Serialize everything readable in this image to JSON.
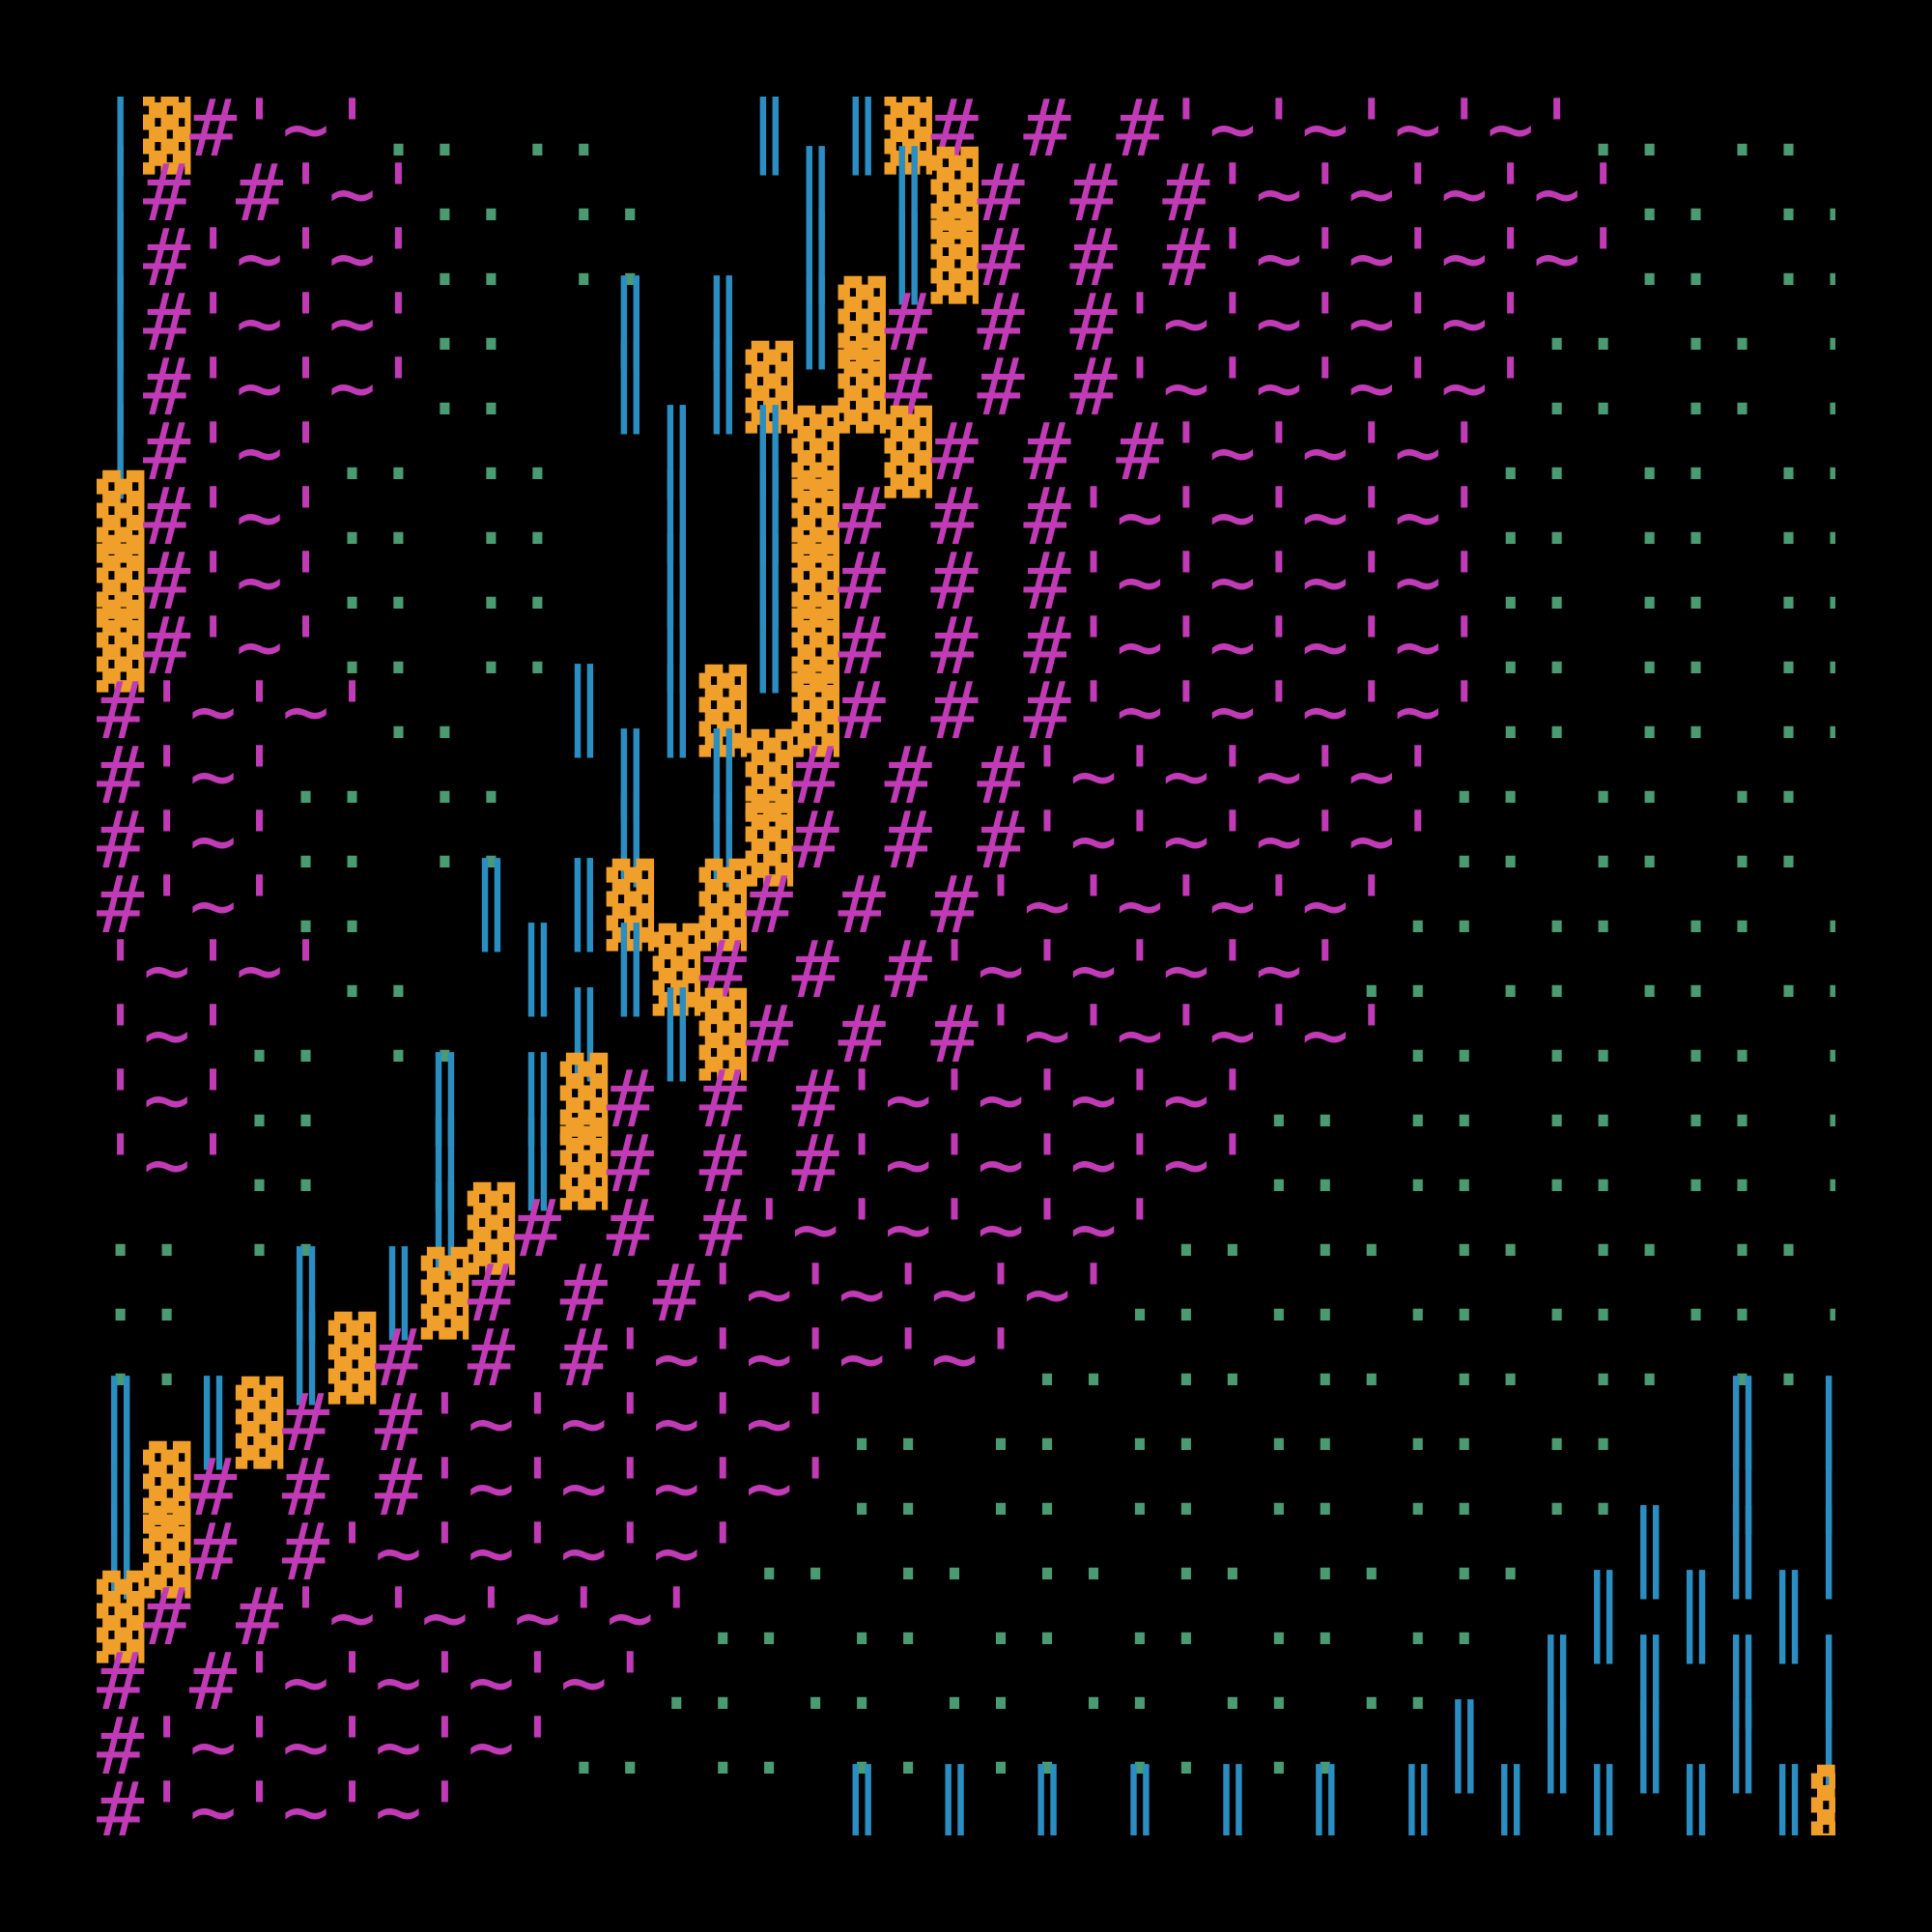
{
  "colors": {
    "background": "#000000",
    "hash": "#c23bb6",
    "wave": "#c23bb6",
    "dots": "#4a9a72",
    "bars": "#2a8ec3",
    "blocks": "#f0a02a",
    "stipple": "#e07aa8"
  },
  "rows": [
    [
      [
        "│",
        "bars"
      ],
      [
        "▓",
        "blocks"
      ],
      [
        "#",
        "hash"
      ],
      [
        "'~'",
        "wave"
      ],
      [
        ".. ..",
        "dots"
      ],
      [
        "   ",
        ""
      ],
      [
        "║ ║",
        "bars"
      ],
      [
        "▓",
        "blocks"
      ],
      [
        "# # #",
        "hash"
      ],
      [
        "'~'~'~'~'",
        "wave"
      ],
      [
        ".. .. .. .. ..",
        "dots"
      ],
      [
        "  ",
        ""
      ],
      [
        "║ ║ ║ ║ ║ ║",
        "bars"
      ],
      [
        "▓ ▓ ▓ ▓ ▓ ▓ ▓",
        "blocks"
      ],
      [
        "░ ░",
        "stipple"
      ]
    ],
    [
      [
        "│",
        "bars"
      ],
      [
        "# #",
        "hash"
      ],
      [
        "'~'",
        "wave"
      ],
      [
        ".. ..",
        "dots"
      ],
      [
        "   ",
        ""
      ],
      [
        "║ ║",
        "bars"
      ],
      [
        "▓",
        "blocks"
      ],
      [
        "# # #",
        "hash"
      ],
      [
        "'~'~'~'~'",
        "wave"
      ],
      [
        ".. .. .. .. ..",
        "dots"
      ],
      [
        "  ",
        ""
      ],
      [
        "║ ║ ║ ║ ║ ║",
        "bars"
      ],
      [
        "▓ ▓ ▓ ▓ ▓ ▓ ▓",
        "blocks"
      ],
      [
        "░ ░",
        "stipple"
      ]
    ],
    [
      [
        "│",
        "bars"
      ],
      [
        "#",
        "hash"
      ],
      [
        "'~'~'",
        "wave"
      ],
      [
        ".. ..",
        "dots"
      ],
      [
        "   ",
        ""
      ],
      [
        "║ ║",
        "bars"
      ],
      [
        "▓",
        "blocks"
      ],
      [
        "# # #",
        "hash"
      ],
      [
        "'~'~'~'~'",
        "wave"
      ],
      [
        ".. .. .. .. ..",
        "dots"
      ],
      [
        "  ",
        ""
      ],
      [
        "║ ║ ║ ║ ║ ║",
        "bars"
      ],
      [
        "▓ ▓ ▓ ▓ ▓ ▓ ▓",
        "blocks"
      ],
      [
        "░ ░",
        "stipple"
      ]
    ],
    [
      [
        "│",
        "bars"
      ],
      [
        "#",
        "hash"
      ],
      [
        "'~'~'",
        "wave"
      ],
      [
        "..",
        "dots"
      ],
      [
        "  ",
        ""
      ],
      [
        "║ ║ ║",
        "bars"
      ],
      [
        "▓",
        "blocks"
      ],
      [
        "# # #",
        "hash"
      ],
      [
        "'~'~'~'~'",
        "wave"
      ],
      [
        ".. .. .. ..",
        "dots"
      ],
      [
        "  ",
        ""
      ],
      [
        "║ ║ ║ ║ ║ ║ ║",
        "bars"
      ],
      [
        "▓ ▓ ▓ ▓ ▓ ▓ ▓",
        "blocks"
      ],
      [
        "░ ░",
        "stipple"
      ]
    ],
    [
      [
        "│",
        "bars"
      ],
      [
        "#",
        "hash"
      ],
      [
        "'~'~'",
        "wave"
      ],
      [
        "..",
        "dots"
      ],
      [
        "  ",
        ""
      ],
      [
        "║ ║",
        "bars"
      ],
      [
        "▓ ▓",
        "blocks"
      ],
      [
        "# # #",
        "hash"
      ],
      [
        "'~'~'~'~'",
        "wave"
      ],
      [
        ".. .. .. ..",
        "dots"
      ],
      [
        "  ",
        ""
      ],
      [
        "║ ║ ║ ║ ║ ║ ║",
        "bars"
      ],
      [
        "▓ ▓ ▓ ▓ ▓ ▓ ▓",
        "blocks"
      ],
      [
        "░ ░",
        "stipple"
      ]
    ],
    [
      [
        "│",
        "bars"
      ],
      [
        "#",
        "hash"
      ],
      [
        "'~'",
        "wave"
      ],
      [
        ".. ..",
        "dots"
      ],
      [
        "  ",
        ""
      ],
      [
        "║ ║",
        "bars"
      ],
      [
        "▓ ▓",
        "blocks"
      ],
      [
        "# # #",
        "hash"
      ],
      [
        "'~'~'~'",
        "wave"
      ],
      [
        ".. .. .. .. ..",
        "dots"
      ],
      [
        "  ",
        ""
      ],
      [
        "║ ║ ║ ║ ║ ║",
        "bars"
      ],
      [
        "▓ ▓ ▓ ▓ ▓ ▓ ▓ ▓",
        "blocks"
      ],
      [
        "░ ░",
        "stipple"
      ]
    ],
    [
      [
        "▓",
        "blocks"
      ],
      [
        "#",
        "hash"
      ],
      [
        "'~'",
        "wave"
      ],
      [
        ".. ..",
        "dots"
      ],
      [
        "  ",
        ""
      ],
      [
        "║ ║",
        "bars"
      ],
      [
        "▓",
        "blocks"
      ],
      [
        "# # #",
        "hash"
      ],
      [
        "'~'~'~'~'",
        "wave"
      ],
      [
        ".. .. .. .. ..",
        "dots"
      ],
      [
        "  ",
        ""
      ],
      [
        "║ ║ ║ ║ ║ ║",
        "bars"
      ],
      [
        "▓ ▓ ▓ ▓ ▓ ▓ ▓ ▓",
        "blocks"
      ],
      [
        "░ ░",
        "stipple"
      ]
    ],
    [
      [
        "▓",
        "blocks"
      ],
      [
        "#",
        "hash"
      ],
      [
        "'~'",
        "wave"
      ],
      [
        ".. ..",
        "dots"
      ],
      [
        "  ",
        ""
      ],
      [
        "║ ║",
        "bars"
      ],
      [
        "▓",
        "blocks"
      ],
      [
        "# # #",
        "hash"
      ],
      [
        "'~'~'~'~'",
        "wave"
      ],
      [
        ".. .. .. .. ..",
        "dots"
      ],
      [
        "  ",
        ""
      ],
      [
        "║ ║ ║ ║ ║ ║",
        "bars"
      ],
      [
        "▓ ▓ ▓ ▓ ▓ ▓ ▓ ▓",
        "blocks"
      ],
      [
        "░ ░",
        "stipple"
      ]
    ],
    [
      [
        "▓",
        "blocks"
      ],
      [
        "#",
        "hash"
      ],
      [
        "'~'",
        "wave"
      ],
      [
        ".. ..",
        "dots"
      ],
      [
        "  ",
        ""
      ],
      [
        "║ ║",
        "bars"
      ],
      [
        "▓",
        "blocks"
      ],
      [
        "# # #",
        "hash"
      ],
      [
        "'~'~'~'~'",
        "wave"
      ],
      [
        ".. .. .. .. ..",
        "dots"
      ],
      [
        "  ",
        ""
      ],
      [
        "║ ║ ║ ║ ║ ║",
        "bars"
      ],
      [
        "▓ ▓ ▓ ▓ ▓ ▓ ▓ ▓ ▓",
        "blocks"
      ],
      [
        "░",
        "stipple"
      ]
    ],
    [
      [
        "#",
        "hash"
      ],
      [
        "'~'~'",
        "wave"
      ],
      [
        "..",
        "dots"
      ],
      [
        "  ",
        ""
      ],
      [
        "║ ║",
        "bars"
      ],
      [
        "▓ ▓",
        "blocks"
      ],
      [
        "# # #",
        "hash"
      ],
      [
        "'~'~'~'~'",
        "wave"
      ],
      [
        ".. .. .. .. ..",
        "dots"
      ],
      [
        "  ",
        ""
      ],
      [
        "║ ║ ║ ║ ║ ║",
        "bars"
      ],
      [
        "▓ ▓ ▓ ▓ ▓ ▓ ▓ ▓ ▓",
        "blocks"
      ],
      [
        "░",
        "stipple"
      ]
    ],
    [
      [
        "#",
        "hash"
      ],
      [
        "'~'",
        "wave"
      ],
      [
        ".. ..",
        "dots"
      ],
      [
        "  ",
        ""
      ],
      [
        "║ ║",
        "bars"
      ],
      [
        "▓",
        "blocks"
      ],
      [
        "# # #",
        "hash"
      ],
      [
        "'~'~'~'~'",
        "wave"
      ],
      [
        ".. .. .. .. ..",
        "dots"
      ],
      [
        "  ",
        ""
      ],
      [
        "║ ║ ║ ║ ║ ║ ║",
        "bars"
      ],
      [
        "▓ ▓ ▓ ▓ ▓ ▓ ▓ ▓ ▓",
        "blocks"
      ],
      [
        "░",
        "stipple"
      ]
    ],
    [
      [
        "#",
        "hash"
      ],
      [
        "'~'",
        "wave"
      ],
      [
        ".. ..",
        "dots"
      ],
      [
        "  ",
        ""
      ],
      [
        "║ ║",
        "bars"
      ],
      [
        "▓",
        "blocks"
      ],
      [
        "# # #",
        "hash"
      ],
      [
        "'~'~'~'~'",
        "wave"
      ],
      [
        ".. .. .. .. ..",
        "dots"
      ],
      [
        "  ",
        ""
      ],
      [
        "║ ║ ║ ║ ║ ║ ║",
        "bars"
      ],
      [
        "▓ ▓ ▓ ▓ ▓ ▓ ▓ ▓ ▓",
        "blocks"
      ],
      [
        "░",
        "stipple"
      ]
    ],
    [
      [
        "#",
        "hash"
      ],
      [
        "'~'",
        "wave"
      ],
      [
        "..",
        "dots"
      ],
      [
        "  ",
        ""
      ],
      [
        "║ ║",
        "bars"
      ],
      [
        "▓ ▓",
        "blocks"
      ],
      [
        "# # #",
        "hash"
      ],
      [
        "'~'~'~'~'",
        "wave"
      ],
      [
        ".. .. .. .. ..",
        "dots"
      ],
      [
        "  ",
        ""
      ],
      [
        "║ ║ ║ ║ ║ ║ ║",
        "bars"
      ],
      [
        "▓ ▓ ▓ ▓ ▓ ▓ ▓ ▓ ▓",
        "blocks"
      ],
      [
        "░",
        "stipple"
      ]
    ],
    [
      [
        "'~'~'",
        "wave"
      ],
      [
        "..",
        "dots"
      ],
      [
        "  ",
        ""
      ],
      [
        "║ ║",
        "bars"
      ],
      [
        "▓",
        "blocks"
      ],
      [
        "# # #",
        "hash"
      ],
      [
        "'~'~'~'~'",
        "wave"
      ],
      [
        ".. .. .. .. .. ..",
        "dots"
      ],
      [
        "  ",
        ""
      ],
      [
        "║ ║ ║ ║ ║ ║ ║",
        "bars"
      ],
      [
        "▓ ▓ ▓ ▓ ▓ ▓ ▓ ▓ ▓",
        "blocks"
      ],
      [
        "░",
        "stipple"
      ]
    ],
    [
      [
        "'~'",
        "wave"
      ],
      [
        ".. ..",
        "dots"
      ],
      [
        "  ",
        ""
      ],
      [
        "║ ║",
        "bars"
      ],
      [
        "▓",
        "blocks"
      ],
      [
        "# # #",
        "hash"
      ],
      [
        "'~'~'~'~'",
        "wave"
      ],
      [
        ".. .. .. .. ..",
        "dots"
      ],
      [
        "  ",
        ""
      ],
      [
        "║ ║ ║ ║ ║ ║ ║ ║",
        "bars"
      ],
      [
        "▓ ▓ ▓ ▓ ▓ ▓ ▓ ▓ ▓",
        "blocks"
      ],
      [
        "░",
        "stipple"
      ]
    ],
    [
      [
        "'~'",
        "wave"
      ],
      [
        "..",
        "dots"
      ],
      [
        "  ",
        ""
      ],
      [
        "║ ║",
        "bars"
      ],
      [
        "▓",
        "blocks"
      ],
      [
        "# # #",
        "hash"
      ],
      [
        "'~'~'~'~'",
        "wave"
      ],
      [
        ".. .. .. .. .. ..",
        "dots"
      ],
      [
        "  ",
        ""
      ],
      [
        "║ ║ ║ ║ ║ ║ ║",
        "bars"
      ],
      [
        "▓ ▓ ▓ ▓ ▓ ▓ ▓ ▓ ▓ ▓ ▓",
        "blocks"
      ]
    ],
    [
      [
        "'~'",
        "wave"
      ],
      [
        "..",
        "dots"
      ],
      [
        "  ",
        ""
      ],
      [
        "║ ║",
        "bars"
      ],
      [
        "▓",
        "blocks"
      ],
      [
        "# # #",
        "hash"
      ],
      [
        "'~'~'~'~'",
        "wave"
      ],
      [
        ".. .. .. .. .. ..",
        "dots"
      ],
      [
        "  ",
        ""
      ],
      [
        "║ ║ ║ ║ ║ ║ ║",
        "bars"
      ],
      [
        "▓ ▓ ▓ ▓ ▓ ▓ ▓ ▓ ▓ ▓ ▓",
        "blocks"
      ]
    ],
    [
      [
        ".. ..",
        "dots"
      ],
      [
        "  ",
        ""
      ],
      [
        "║",
        "bars"
      ],
      [
        "▓",
        "blocks"
      ],
      [
        "# # #",
        "hash"
      ],
      [
        "'~'~'~'~'",
        "wave"
      ],
      [
        ".. .. .. .. .. ..",
        "dots"
      ],
      [
        "  ",
        ""
      ],
      [
        "║ ║ ║ ║ ║ ║ ║ ║",
        "bars"
      ],
      [
        "▓ ▓ ▓ ▓ ▓ ▓ ▓ ▓ ▓ ▓ ▓",
        "blocks"
      ]
    ],
    [
      [
        "..",
        "dots"
      ],
      [
        "  ",
        ""
      ],
      [
        "║ ║",
        "bars"
      ],
      [
        "▓",
        "blocks"
      ],
      [
        "# # #",
        "hash"
      ],
      [
        "'~'~'~'~'",
        "wave"
      ],
      [
        ".. .. .. .. .. ..",
        "dots"
      ],
      [
        "  ",
        ""
      ],
      [
        "║ ║ ║ ║ ║ ║ ║ ║",
        "bars"
      ],
      [
        "▓ ▓ ▓ ▓ ▓ ▓ ▓ ▓ ▓ ▓ ▓",
        "blocks"
      ]
    ],
    [
      [
        "..",
        "dots"
      ],
      [
        "  ",
        ""
      ],
      [
        "║",
        "bars"
      ],
      [
        "▓",
        "blocks"
      ],
      [
        "# # #",
        "hash"
      ],
      [
        "'~'~'~'~'",
        "wave"
      ],
      [
        ".. .. .. .. .. ..",
        "dots"
      ],
      [
        "  ",
        ""
      ],
      [
        "║ ║ ║ ║ ║ ║ ║ ║ ║",
        "bars"
      ],
      [
        "▓ ▓ ▓ ▓ ▓ ▓ ▓ ▓ ▓ ▓ ▓",
        "blocks"
      ]
    ],
    [
      [
        "║ ║",
        "bars"
      ],
      [
        "▓",
        "blocks"
      ],
      [
        "# #",
        "hash"
      ],
      [
        "'~'~'~'~'",
        "wave"
      ],
      [
        ".. .. .. .. .. ..",
        "dots"
      ],
      [
        "  ",
        ""
      ],
      [
        "║ ║ ║ ║ ║ ║ ║ ║ ║",
        "bars"
      ],
      [
        "▓ ▓ ▓ ▓ ▓ ▓ ▓ ▓ ▓ ▓ ▓ ▓",
        "blocks"
      ]
    ],
    [
      [
        "║",
        "bars"
      ],
      [
        "▓",
        "blocks"
      ],
      [
        "# # #",
        "hash"
      ],
      [
        "'~'~'~'~'",
        "wave"
      ],
      [
        ".. .. .. .. .. ..",
        "dots"
      ],
      [
        "  ",
        ""
      ],
      [
        "║ ║ ║ ║ ║ ║ ║ ║ ║",
        "bars"
      ],
      [
        "▓ ▓ ▓ ▓ ▓ ▓ ▓ ▓ ▓ ▓ ▓ ▓",
        "blocks"
      ]
    ],
    [
      [
        "║",
        "bars"
      ],
      [
        "▓",
        "blocks"
      ],
      [
        "# #",
        "hash"
      ],
      [
        "'~'~'~'~'",
        "wave"
      ],
      [
        ".. .. .. .. .. ..",
        "dots"
      ],
      [
        "  ",
        ""
      ],
      [
        "║ ║ ║ ║ ║ ║ ║ ║ ║ ║",
        "bars"
      ],
      [
        "▓ ▓ ▓ ▓ ▓ ▓ ▓ ▓ ▓ ▓ ▓ ▓",
        "blocks"
      ]
    ],
    [
      [
        "▓",
        "blocks"
      ],
      [
        "# #",
        "hash"
      ],
      [
        "'~'~'~'~'",
        "wave"
      ],
      [
        ".. .. .. .. .. ..",
        "dots"
      ],
      [
        "  ",
        ""
      ],
      [
        "║ ║ ║ ║ ║ ║ ║ ║ ║ ║",
        "bars"
      ],
      [
        "▓ ▓ ▓ ▓ ▓ ▓ ▓ ▓ ▓ ▓ ▓ ▓ ▓",
        "blocks"
      ]
    ],
    [
      [
        "# #",
        "hash"
      ],
      [
        "'~'~'~'~'",
        "wave"
      ],
      [
        ".. .. .. .. .. ..",
        "dots"
      ],
      [
        "  ",
        ""
      ],
      [
        "║ ║ ║ ║ ║ ║ ║ ║ ║ ║",
        "bars"
      ],
      [
        "▓ ▓ ▓ ▓ ▓ ▓ ▓ ▓ ▓ ▓ ▓ ▓ ▓ ▓",
        "blocks"
      ]
    ],
    [
      [
        "#",
        "hash"
      ],
      [
        "'~'~'~'~'",
        "wave"
      ],
      [
        ".. .. .. .. .. ..",
        "dots"
      ],
      [
        "  ",
        ""
      ],
      [
        "║ ║ ║ ║ ║ ║ ║ ║ ║ ║",
        "bars"
      ],
      [
        "▓ ▓ ▓ ▓ ▓ ▓ ▓ ▓ ▓ ▓ ▓ ▓ ▓ ▓",
        "blocks"
      ]
    ],
    [
      [
        "#",
        "hash"
      ],
      [
        "'~'~'~'",
        "wave"
      ],
      [
        "        ",
        ""
      ],
      [
        "║ ║ ║ ║ ║ ║ ║ ║ ║ ║ ║",
        "bars"
      ],
      [
        "▓ ▓ ▓ ▓ ▓ ▓ ▓ ▓ ▓ ▓ ▓ ▓ ▓ ▓ ▓",
        "blocks"
      ]
    ]
  ]
}
